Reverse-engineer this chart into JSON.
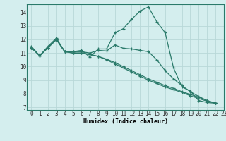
{
  "xlabel": "Humidex (Indice chaleur)",
  "xlim": [
    -0.5,
    23
  ],
  "ylim": [
    6.8,
    14.6
  ],
  "yticks": [
    7,
    8,
    9,
    10,
    11,
    12,
    13,
    14
  ],
  "xticks": [
    0,
    1,
    2,
    3,
    4,
    5,
    6,
    7,
    8,
    9,
    10,
    11,
    12,
    13,
    14,
    15,
    16,
    17,
    18,
    19,
    20,
    21,
    22,
    23
  ],
  "bg_color": "#d4eeee",
  "grid_color": "#b8d8d8",
  "line_color": "#2a7a6a",
  "lines": [
    {
      "x": [
        0,
        1,
        2,
        3,
        4,
        5,
        6,
        7,
        8,
        9,
        10,
        11,
        12,
        13,
        14,
        15,
        16,
        17,
        18,
        19,
        20,
        21,
        22
      ],
      "y": [
        11.5,
        10.8,
        11.5,
        12.1,
        11.1,
        11.1,
        11.2,
        10.7,
        11.3,
        11.3,
        12.5,
        12.8,
        13.5,
        14.1,
        14.4,
        13.3,
        12.5,
        9.9,
        8.5,
        8.2,
        7.5,
        7.35,
        7.3
      ]
    },
    {
      "x": [
        0,
        1,
        2,
        3,
        4,
        5,
        6,
        7,
        8,
        9,
        10,
        11,
        12,
        13,
        14,
        15,
        16,
        17,
        18,
        19,
        20,
        21,
        22
      ],
      "y": [
        11.4,
        10.8,
        11.4,
        12.0,
        11.1,
        11.1,
        11.1,
        11.0,
        11.2,
        11.15,
        11.6,
        11.35,
        11.3,
        11.2,
        11.1,
        10.5,
        9.7,
        9.1,
        8.6,
        8.15,
        7.8,
        7.5,
        7.3
      ]
    },
    {
      "x": [
        0,
        1,
        2,
        3,
        4,
        5,
        6,
        7,
        8,
        9,
        10,
        11,
        12,
        13,
        14,
        15,
        16,
        17,
        18,
        19,
        20,
        21,
        22
      ],
      "y": [
        11.4,
        10.8,
        11.4,
        12.0,
        11.1,
        11.0,
        11.0,
        10.9,
        10.75,
        10.5,
        10.2,
        9.9,
        9.6,
        9.3,
        9.0,
        8.75,
        8.5,
        8.3,
        8.1,
        7.85,
        7.65,
        7.45,
        7.3
      ]
    },
    {
      "x": [
        0,
        1,
        2,
        3,
        4,
        5,
        6,
        7,
        8,
        9,
        10,
        11,
        12,
        13,
        14,
        15,
        16,
        17,
        18,
        19,
        20,
        21,
        22
      ],
      "y": [
        11.4,
        10.8,
        11.4,
        12.0,
        11.1,
        11.0,
        11.0,
        10.9,
        10.75,
        10.55,
        10.3,
        10.0,
        9.7,
        9.4,
        9.1,
        8.85,
        8.6,
        8.4,
        8.15,
        7.95,
        7.75,
        7.5,
        7.3
      ]
    }
  ]
}
